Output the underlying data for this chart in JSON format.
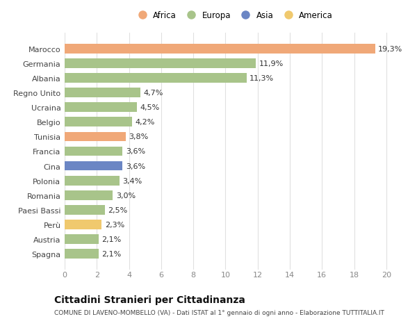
{
  "categories": [
    "Spagna",
    "Austria",
    "Perù",
    "Paesi Bassi",
    "Romania",
    "Polonia",
    "Cina",
    "Francia",
    "Tunisia",
    "Belgio",
    "Ucraina",
    "Regno Unito",
    "Albania",
    "Germania",
    "Marocco"
  ],
  "values": [
    2.1,
    2.1,
    2.3,
    2.5,
    3.0,
    3.4,
    3.6,
    3.6,
    3.8,
    4.2,
    4.5,
    4.7,
    11.3,
    11.9,
    19.3
  ],
  "labels": [
    "2,1%",
    "2,1%",
    "2,3%",
    "2,5%",
    "3,0%",
    "3,4%",
    "3,6%",
    "3,6%",
    "3,8%",
    "4,2%",
    "4,5%",
    "4,7%",
    "11,3%",
    "11,9%",
    "19,3%"
  ],
  "colors": [
    "#a8c48a",
    "#a8c48a",
    "#f0c96e",
    "#a8c48a",
    "#a8c48a",
    "#a8c48a",
    "#6b86c4",
    "#a8c48a",
    "#f0a878",
    "#a8c48a",
    "#a8c48a",
    "#a8c48a",
    "#a8c48a",
    "#a8c48a",
    "#f0a878"
  ],
  "legend": {
    "labels": [
      "Africa",
      "Europa",
      "Asia",
      "America"
    ],
    "colors": [
      "#f0a878",
      "#a8c48a",
      "#6b86c4",
      "#f0c96e"
    ]
  },
  "xlim": [
    0,
    21
  ],
  "xticks": [
    0,
    2,
    4,
    6,
    8,
    10,
    12,
    14,
    16,
    18,
    20
  ],
  "title": "Cittadini Stranieri per Cittadinanza",
  "subtitle": "COMUNE DI LAVENO-MOMBELLO (VA) - Dati ISTAT al 1° gennaio di ogni anno - Elaborazione TUTTITALIA.IT",
  "bg_color": "#ffffff",
  "plot_bg_color": "#ffffff",
  "bar_height": 0.65,
  "label_fontsize": 8,
  "tick_fontsize": 8,
  "legend_fontsize": 8.5,
  "title_fontsize": 10,
  "subtitle_fontsize": 6.5,
  "grid_color": "#e0e0e0"
}
